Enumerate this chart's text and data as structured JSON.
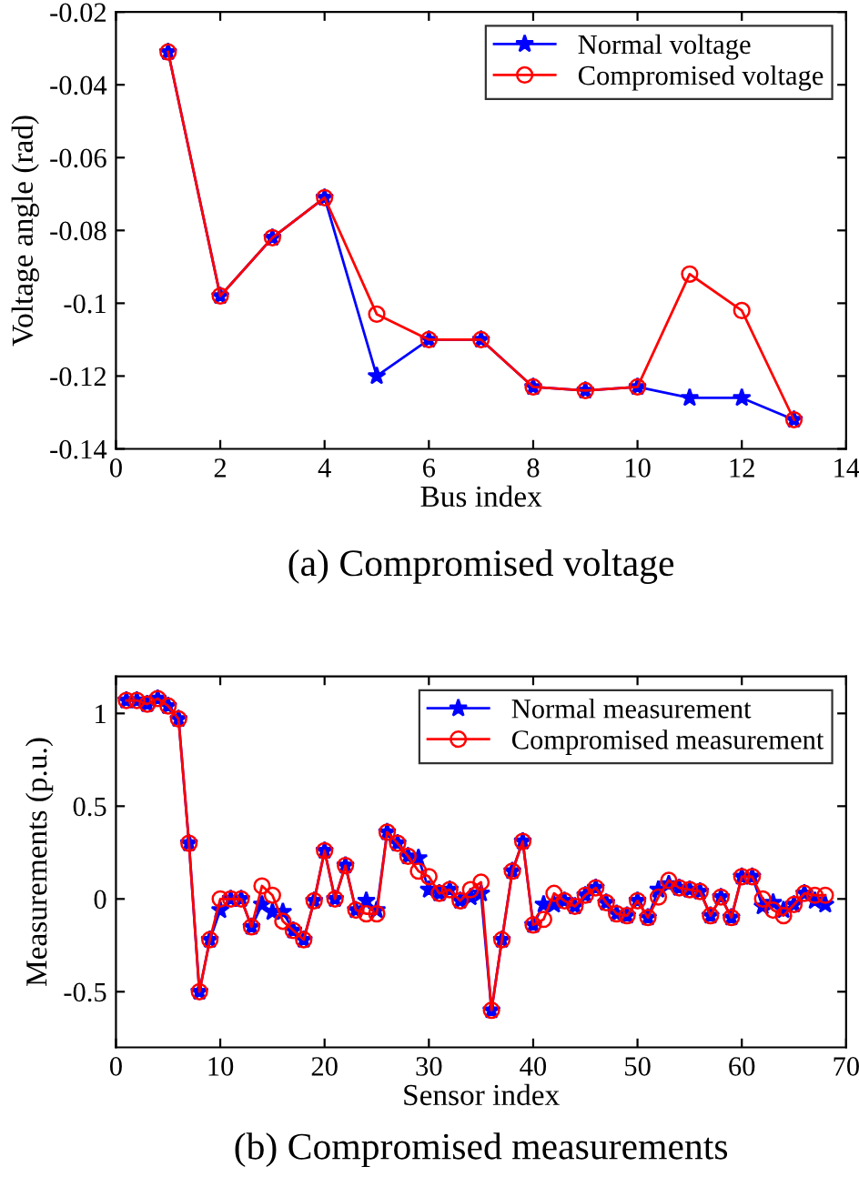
{
  "chart_data": [
    {
      "type": "line",
      "xlabel": "Bus index",
      "ylabel": "Voltage angle (rad)",
      "annotations": [
        "(a) Compromised voltage"
      ],
      "x": [
        1,
        2,
        3,
        4,
        5,
        6,
        7,
        8,
        9,
        10,
        11,
        12,
        13
      ],
      "xlim": [
        0,
        14
      ],
      "xticks": [
        0,
        2,
        4,
        6,
        8,
        10,
        12,
        14
      ],
      "ylim": [
        -0.14,
        -0.02
      ],
      "yticks": [
        -0.14,
        -0.12,
        -0.1,
        -0.08,
        -0.06,
        -0.04,
        -0.02
      ],
      "legend": "top right",
      "grid": false,
      "series": [
        {
          "name": "Normal voltage",
          "color": "#0000ff",
          "marker": "star",
          "values": [
            -0.031,
            -0.098,
            -0.082,
            -0.071,
            -0.12,
            -0.11,
            -0.11,
            -0.123,
            -0.124,
            -0.123,
            -0.126,
            -0.126,
            -0.132
          ]
        },
        {
          "name": "Compromised voltage",
          "color": "#ff0000",
          "marker": "circle",
          "values": [
            -0.031,
            -0.098,
            -0.082,
            -0.071,
            -0.103,
            -0.11,
            -0.11,
            -0.123,
            -0.124,
            -0.123,
            -0.092,
            -0.102,
            -0.132
          ]
        }
      ]
    },
    {
      "type": "line",
      "xlabel": "Sensor index",
      "ylabel": "Measurements (p.u.)",
      "annotations": [
        "(b) Compromised measurements"
      ],
      "x": [
        1,
        2,
        3,
        4,
        5,
        6,
        7,
        8,
        9,
        10,
        11,
        12,
        13,
        14,
        15,
        16,
        17,
        18,
        19,
        20,
        21,
        22,
        23,
        24,
        25,
        26,
        27,
        28,
        29,
        30,
        31,
        32,
        33,
        34,
        35,
        36,
        37,
        38,
        39,
        40,
        41,
        42,
        43,
        44,
        45,
        46,
        47,
        48,
        49,
        50,
        51,
        52,
        53,
        54,
        55,
        56,
        57,
        58,
        59,
        60,
        61,
        62,
        63,
        64,
        65,
        66,
        67,
        68
      ],
      "xlim": [
        0,
        70
      ],
      "xticks": [
        0,
        10,
        20,
        30,
        40,
        50,
        60,
        70
      ],
      "ylim": [
        -0.8,
        1.2
      ],
      "yticks": [
        -0.5,
        0,
        0.5,
        1
      ],
      "legend": "top right",
      "grid": false,
      "series": [
        {
          "name": "Normal measurement",
          "color": "#0000ff",
          "marker": "star",
          "values": [
            1.07,
            1.07,
            1.05,
            1.08,
            1.04,
            0.97,
            0.3,
            -0.5,
            -0.22,
            -0.06,
            0.0,
            0.0,
            -0.15,
            -0.03,
            -0.07,
            -0.07,
            -0.17,
            -0.22,
            -0.01,
            0.26,
            0.0,
            0.18,
            -0.06,
            -0.01,
            -0.06,
            0.36,
            0.3,
            0.23,
            0.22,
            0.05,
            0.03,
            0.05,
            -0.01,
            0.01,
            0.03,
            -0.6,
            -0.22,
            0.15,
            0.31,
            -0.14,
            -0.03,
            -0.03,
            -0.01,
            -0.04,
            0.02,
            0.06,
            -0.02,
            -0.08,
            -0.09,
            -0.01,
            -0.1,
            0.05,
            0.08,
            0.06,
            0.05,
            0.04,
            -0.09,
            0.01,
            -0.1,
            0.12,
            0.12,
            -0.04,
            -0.02,
            -0.06,
            -0.03,
            0.03,
            -0.01,
            -0.03
          ]
        },
        {
          "name": "Compromised measurement",
          "color": "#ff0000",
          "marker": "circle",
          "values": [
            1.07,
            1.07,
            1.05,
            1.08,
            1.04,
            0.97,
            0.3,
            -0.5,
            -0.22,
            0.0,
            0.0,
            0.0,
            -0.15,
            0.07,
            0.02,
            -0.12,
            -0.17,
            -0.22,
            -0.01,
            0.26,
            0.0,
            0.18,
            -0.06,
            -0.08,
            -0.08,
            0.36,
            0.3,
            0.23,
            0.15,
            0.12,
            0.03,
            0.05,
            -0.01,
            0.05,
            0.09,
            -0.6,
            -0.22,
            0.15,
            0.31,
            -0.14,
            -0.11,
            0.03,
            -0.01,
            -0.04,
            0.02,
            0.06,
            -0.02,
            -0.08,
            -0.09,
            -0.01,
            -0.1,
            0.01,
            0.1,
            0.06,
            0.05,
            0.04,
            -0.09,
            0.01,
            -0.1,
            0.12,
            0.12,
            0.0,
            -0.06,
            -0.09,
            -0.03,
            0.03,
            0.02,
            0.02
          ]
        }
      ]
    }
  ]
}
